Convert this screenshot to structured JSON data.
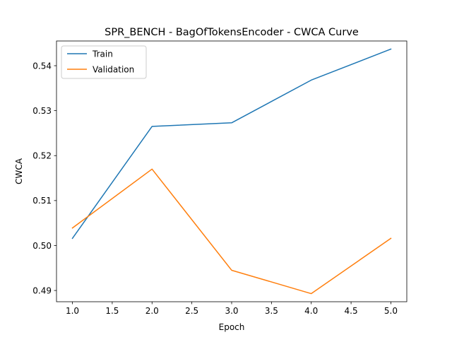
{
  "chart_data": {
    "type": "line",
    "title": "SPR_BENCH - BagOfTokensEncoder - CWCA Curve",
    "xlabel": "Epoch",
    "ylabel": "CWCA",
    "x": [
      1.0,
      2.0,
      3.0,
      4.0,
      5.0
    ],
    "xlim": [
      0.8,
      5.2
    ],
    "ylim": [
      0.4875,
      0.5455
    ],
    "xticks": [
      1.0,
      1.5,
      2.0,
      2.5,
      3.0,
      3.5,
      4.0,
      4.5,
      5.0
    ],
    "xtick_labels": [
      "1.0",
      "1.5",
      "2.0",
      "2.5",
      "3.0",
      "3.5",
      "4.0",
      "4.5",
      "5.0"
    ],
    "yticks": [
      0.49,
      0.5,
      0.51,
      0.52,
      0.53,
      0.54
    ],
    "ytick_labels": [
      "0.49",
      "0.50",
      "0.51",
      "0.52",
      "0.53",
      "0.54"
    ],
    "grid": false,
    "legend_position": "top-left",
    "series": [
      {
        "name": "Train",
        "color": "#1f77b4",
        "values": [
          0.5016,
          0.5265,
          0.5273,
          0.5368,
          0.5437
        ]
      },
      {
        "name": "Validation",
        "color": "#ff7f0e",
        "values": [
          0.5039,
          0.517,
          0.4945,
          0.4893,
          0.5016
        ]
      }
    ]
  }
}
